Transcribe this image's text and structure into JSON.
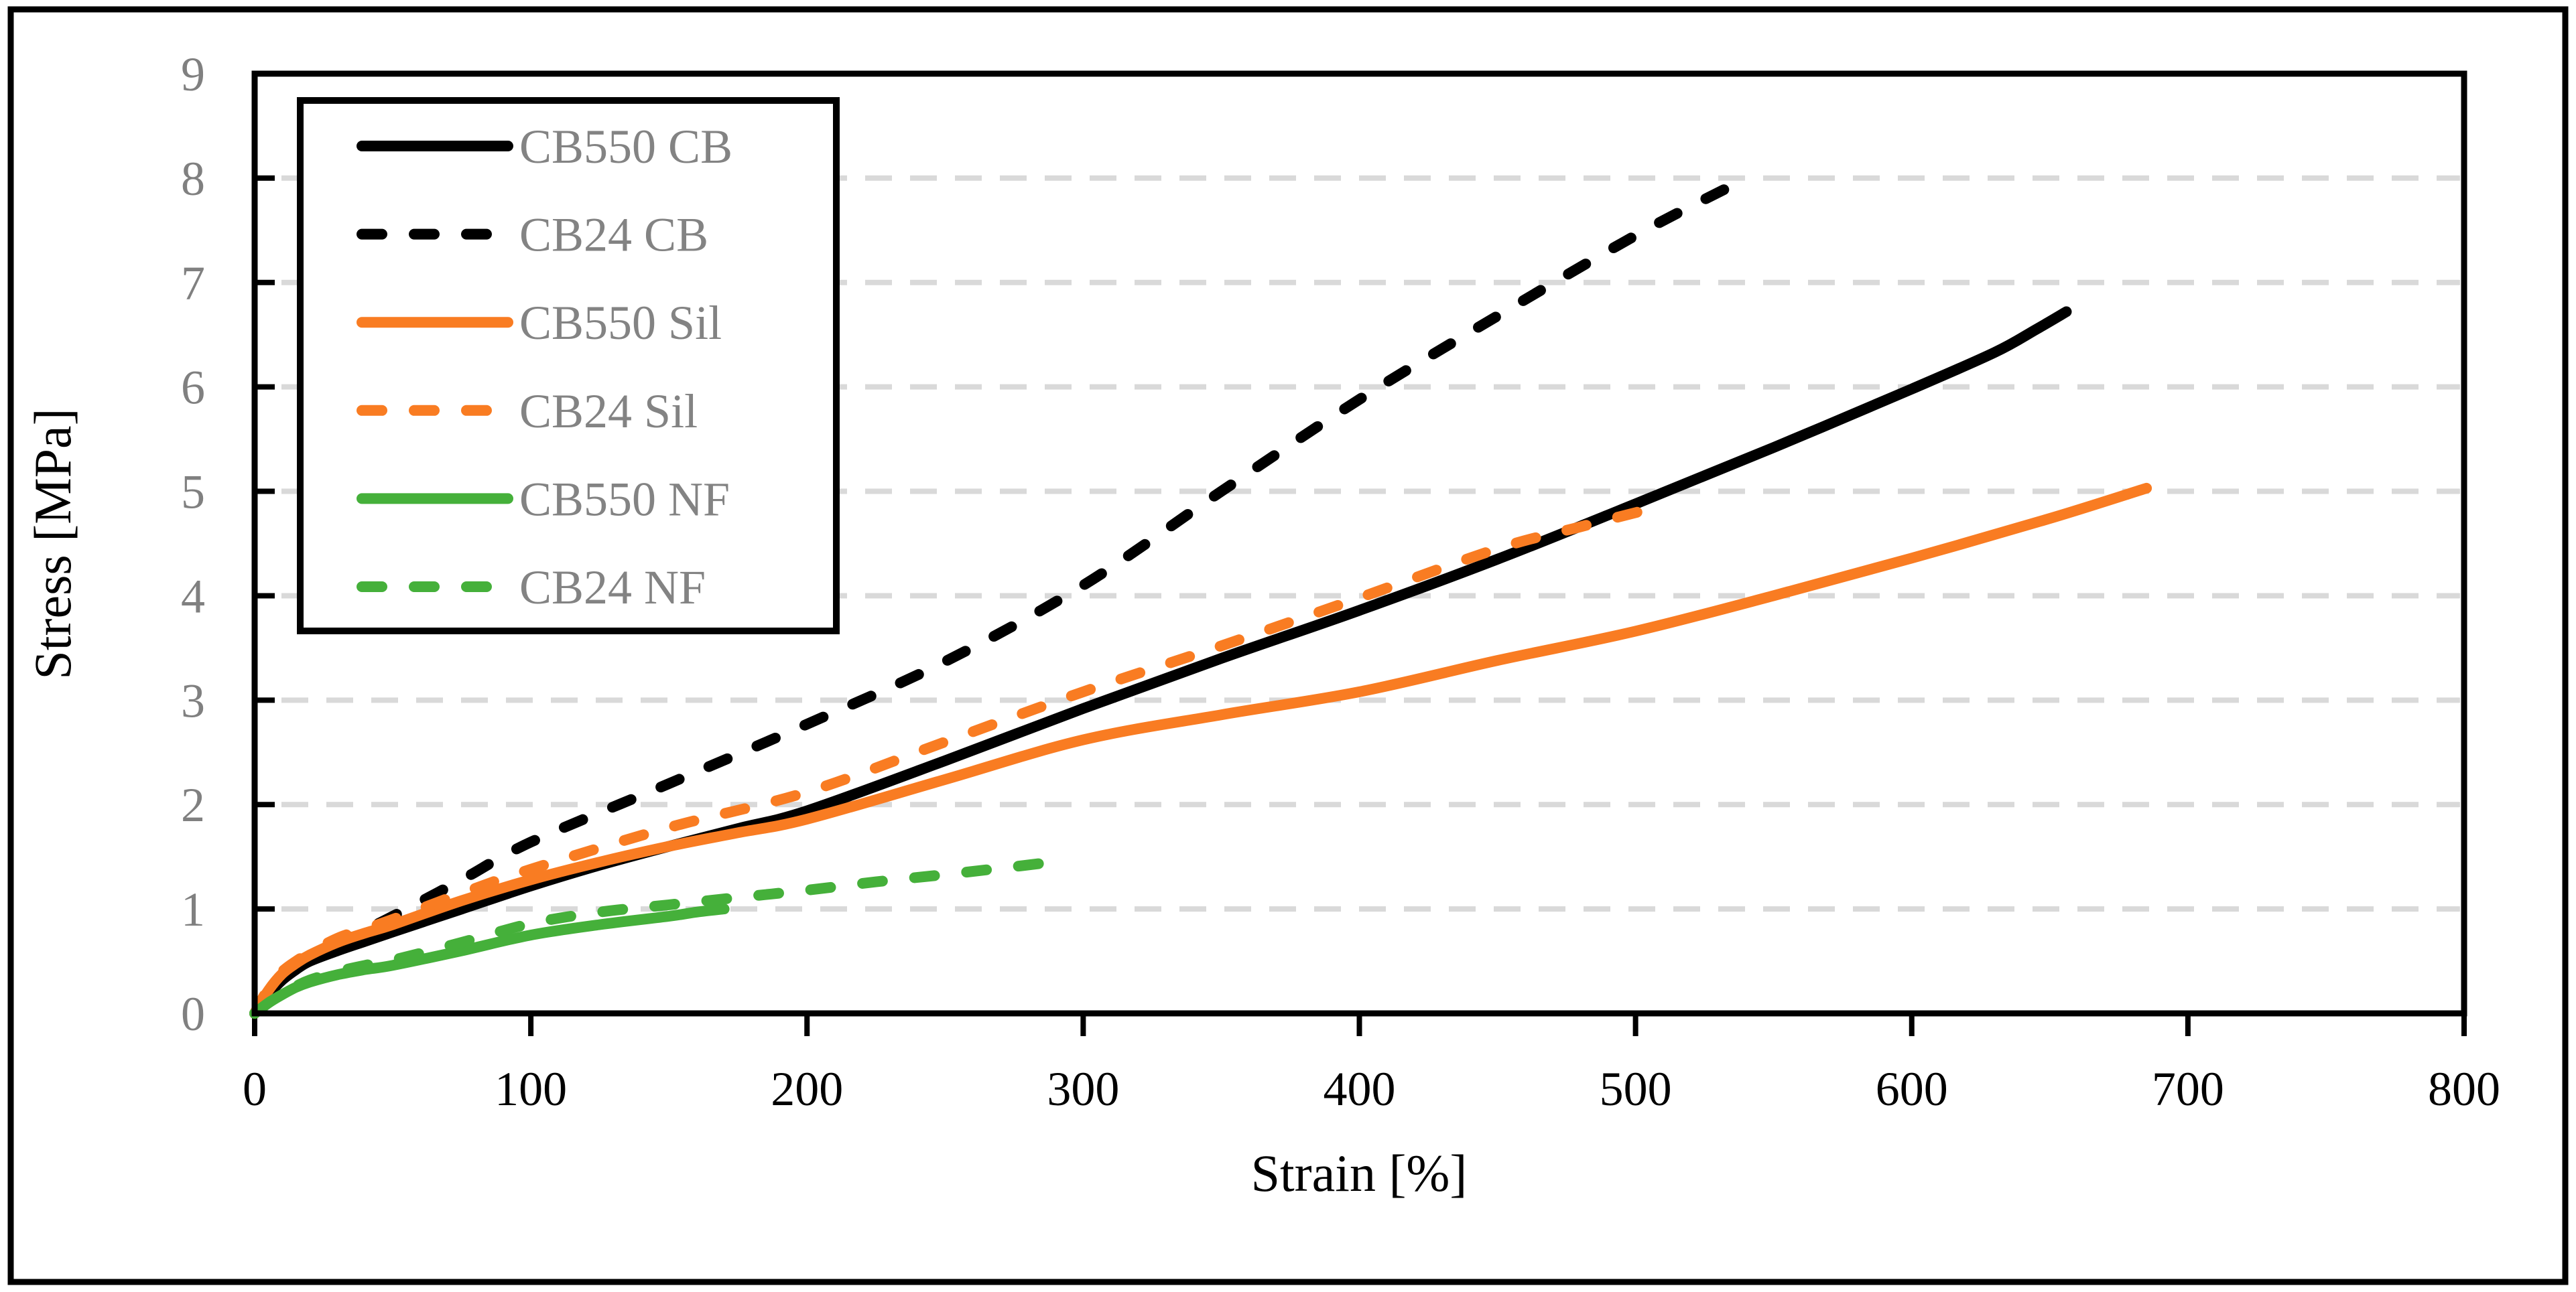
{
  "chart_data": {
    "type": "line",
    "title": "",
    "xlabel": "Strain [%]",
    "ylabel": "Stress [MPa]",
    "xlim": [
      0,
      800
    ],
    "ylim": [
      0,
      9
    ],
    "x_ticks": [
      0,
      100,
      200,
      300,
      400,
      500,
      600,
      700,
      800
    ],
    "y_ticks": [
      0,
      1,
      2,
      3,
      4,
      5,
      6,
      7,
      8,
      9
    ],
    "grid": "horizontal-dashed",
    "gridline_color": "#D9D9D9",
    "legend_position": "top-left",
    "legend_text_color": "#838383",
    "y_tick_label_color": "#808080",
    "x_tick_label_color": "#000000",
    "series": [
      {
        "name": "CB550 CB",
        "color": "#000000",
        "dashed": false,
        "points": [
          [
            0,
            0
          ],
          [
            5,
            0.18
          ],
          [
            10,
            0.32
          ],
          [
            15,
            0.42
          ],
          [
            20,
            0.5
          ],
          [
            30,
            0.6
          ],
          [
            40,
            0.69
          ],
          [
            50,
            0.78
          ],
          [
            75,
            1.0
          ],
          [
            100,
            1.22
          ],
          [
            125,
            1.42
          ],
          [
            150,
            1.6
          ],
          [
            175,
            1.77
          ],
          [
            200,
            1.94
          ],
          [
            250,
            2.42
          ],
          [
            300,
            2.92
          ],
          [
            350,
            3.4
          ],
          [
            400,
            3.86
          ],
          [
            450,
            4.35
          ],
          [
            500,
            4.88
          ],
          [
            550,
            5.42
          ],
          [
            600,
            5.98
          ],
          [
            630,
            6.33
          ],
          [
            645,
            6.55
          ],
          [
            656,
            6.72
          ]
        ]
      },
      {
        "name": "CB24 CB",
        "color": "#000000",
        "dashed": true,
        "points": [
          [
            0,
            0
          ],
          [
            5,
            0.2
          ],
          [
            10,
            0.35
          ],
          [
            15,
            0.46
          ],
          [
            20,
            0.55
          ],
          [
            30,
            0.68
          ],
          [
            40,
            0.8
          ],
          [
            50,
            0.93
          ],
          [
            75,
            1.28
          ],
          [
            100,
            1.64
          ],
          [
            150,
            2.2
          ],
          [
            200,
            2.77
          ],
          [
            250,
            3.37
          ],
          [
            300,
            4.1
          ],
          [
            350,
            5.0
          ],
          [
            400,
            5.88
          ],
          [
            450,
            6.68
          ],
          [
            500,
            7.45
          ],
          [
            535,
            7.93
          ]
        ]
      },
      {
        "name": "CB550 Sil",
        "color": "#F97C22",
        "dashed": false,
        "points": [
          [
            0,
            0
          ],
          [
            5,
            0.22
          ],
          [
            10,
            0.38
          ],
          [
            15,
            0.48
          ],
          [
            20,
            0.56
          ],
          [
            30,
            0.68
          ],
          [
            40,
            0.77
          ],
          [
            50,
            0.85
          ],
          [
            75,
            1.08
          ],
          [
            100,
            1.28
          ],
          [
            125,
            1.45
          ],
          [
            150,
            1.6
          ],
          [
            175,
            1.73
          ],
          [
            200,
            1.86
          ],
          [
            250,
            2.24
          ],
          [
            300,
            2.62
          ],
          [
            350,
            2.86
          ],
          [
            400,
            3.08
          ],
          [
            450,
            3.38
          ],
          [
            500,
            3.66
          ],
          [
            550,
            4.0
          ],
          [
            600,
            4.36
          ],
          [
            650,
            4.74
          ],
          [
            685,
            5.03
          ]
        ]
      },
      {
        "name": "CB24 Sil",
        "color": "#F97C22",
        "dashed": true,
        "points": [
          [
            0,
            0
          ],
          [
            5,
            0.24
          ],
          [
            10,
            0.4
          ],
          [
            15,
            0.5
          ],
          [
            20,
            0.58
          ],
          [
            30,
            0.72
          ],
          [
            40,
            0.81
          ],
          [
            50,
            0.9
          ],
          [
            75,
            1.15
          ],
          [
            100,
            1.38
          ],
          [
            150,
            1.78
          ],
          [
            200,
            2.12
          ],
          [
            250,
            2.6
          ],
          [
            300,
            3.08
          ],
          [
            350,
            3.52
          ],
          [
            400,
            3.98
          ],
          [
            450,
            4.45
          ],
          [
            480,
            4.66
          ],
          [
            508,
            4.85
          ]
        ]
      },
      {
        "name": "CB550 NF",
        "color": "#45B03A",
        "dashed": false,
        "points": [
          [
            0,
            0
          ],
          [
            5,
            0.1
          ],
          [
            10,
            0.18
          ],
          [
            15,
            0.25
          ],
          [
            20,
            0.3
          ],
          [
            30,
            0.37
          ],
          [
            40,
            0.42
          ],
          [
            50,
            0.46
          ],
          [
            75,
            0.6
          ],
          [
            100,
            0.75
          ],
          [
            125,
            0.85
          ],
          [
            150,
            0.93
          ],
          [
            160,
            0.97
          ],
          [
            170,
            1.0
          ]
        ]
      },
      {
        "name": "CB24 NF",
        "color": "#45B03A",
        "dashed": true,
        "points": [
          [
            0,
            0
          ],
          [
            5,
            0.1
          ],
          [
            10,
            0.19
          ],
          [
            15,
            0.26
          ],
          [
            20,
            0.32
          ],
          [
            30,
            0.4
          ],
          [
            40,
            0.46
          ],
          [
            50,
            0.51
          ],
          [
            75,
            0.68
          ],
          [
            100,
            0.86
          ],
          [
            125,
            0.97
          ],
          [
            150,
            1.04
          ],
          [
            175,
            1.11
          ],
          [
            200,
            1.18
          ],
          [
            225,
            1.26
          ],
          [
            250,
            1.33
          ],
          [
            270,
            1.39
          ],
          [
            286,
            1.44
          ]
        ]
      }
    ]
  }
}
